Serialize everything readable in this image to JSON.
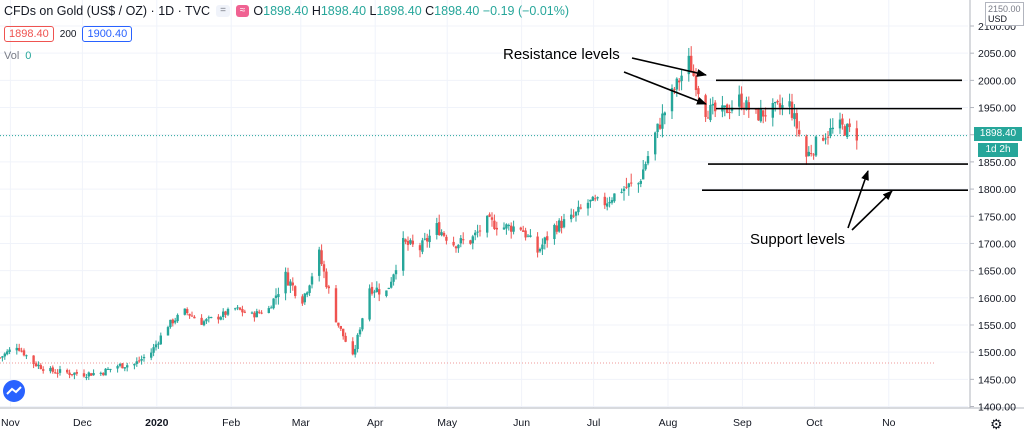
{
  "header": {
    "symbol": "CFDs on Gold (US$ / OZ) · 1D · TVC",
    "eq_icon": "=",
    "wave_icon": "≈",
    "open_label": "O",
    "open": "1898.40",
    "high_label": "H",
    "high": "1898.40",
    "low_label": "L",
    "low": "1898.40",
    "close_label": "C",
    "close": "1898.40",
    "change": "−0.19 (−0.01%)"
  },
  "quote": {
    "bid": "1898.40",
    "spread": "200",
    "ask": "1900.40"
  },
  "volume": {
    "label": "Vol",
    "value": "0"
  },
  "price_axis": {
    "currency": "USD",
    "top_cut": "2150.00"
  },
  "current_price": {
    "value": "1898.40",
    "countdown": "1d 2h"
  },
  "annotations": {
    "resistance": "Resistance levels",
    "support": "Support levels"
  },
  "colors": {
    "up": "#26a69a",
    "down": "#ef5350",
    "level_line": "#000000",
    "accent": "#2962ff"
  },
  "icons": {
    "logo": "tradingview-logo-icon",
    "settings": "gear-icon"
  },
  "chart_data": {
    "type": "candlestick",
    "title": "CFDs on Gold (US$ / OZ) · 1D · TVC",
    "y_ticks": [
      "2100.00",
      "2050.00",
      "2000.00",
      "1950.00",
      "1900.00",
      "1850.00",
      "1800.00",
      "1750.00",
      "1700.00",
      "1650.00",
      "1600.00",
      "1550.00",
      "1500.00",
      "1450.00",
      "1400.00"
    ],
    "x_ticks": [
      "Nov",
      "Dec",
      "2020",
      "Feb",
      "Mar",
      "Apr",
      "May",
      "Jun",
      "Jul",
      "Aug",
      "Sep",
      "Oct",
      "No"
    ],
    "ylim": [
      1380,
      2150
    ],
    "start_date": "2019-10-21",
    "reference_line": 1480,
    "resistance_levels": [
      2000,
      1948
    ],
    "support_levels": [
      1846,
      1798
    ],
    "series": [
      {
        "date": "2019-10-21",
        "price": 1490
      },
      {
        "date": "2019-10-28",
        "price": 1512
      },
      {
        "date": "2019-11-04",
        "price": 1480
      },
      {
        "date": "2019-11-11",
        "price": 1465
      },
      {
        "date": "2019-11-18",
        "price": 1462
      },
      {
        "date": "2019-11-25",
        "price": 1460
      },
      {
        "date": "2019-12-02",
        "price": 1462
      },
      {
        "date": "2019-12-09",
        "price": 1475
      },
      {
        "date": "2019-12-16",
        "price": 1478
      },
      {
        "date": "2019-12-23",
        "price": 1500
      },
      {
        "date": "2019-12-30",
        "price": 1550
      },
      {
        "date": "2020-01-06",
        "price": 1575
      },
      {
        "date": "2020-01-13",
        "price": 1555
      },
      {
        "date": "2020-01-20",
        "price": 1565
      },
      {
        "date": "2020-01-27",
        "price": 1580
      },
      {
        "date": "2020-02-03",
        "price": 1568
      },
      {
        "date": "2020-02-10",
        "price": 1580
      },
      {
        "date": "2020-02-17",
        "price": 1640
      },
      {
        "date": "2020-02-24",
        "price": 1595
      },
      {
        "date": "2020-03-02",
        "price": 1680
      },
      {
        "date": "2020-03-09",
        "price": 1560
      },
      {
        "date": "2020-03-16",
        "price": 1490
      },
      {
        "date": "2020-03-23",
        "price": 1620
      },
      {
        "date": "2020-03-30",
        "price": 1610
      },
      {
        "date": "2020-04-06",
        "price": 1700
      },
      {
        "date": "2020-04-13",
        "price": 1690
      },
      {
        "date": "2020-04-20",
        "price": 1730
      },
      {
        "date": "2020-04-27",
        "price": 1700
      },
      {
        "date": "2020-05-04",
        "price": 1705
      },
      {
        "date": "2020-05-11",
        "price": 1740
      },
      {
        "date": "2020-05-18",
        "price": 1730
      },
      {
        "date": "2020-05-25",
        "price": 1730
      },
      {
        "date": "2020-06-01",
        "price": 1685
      },
      {
        "date": "2020-06-08",
        "price": 1730
      },
      {
        "date": "2020-06-15",
        "price": 1745
      },
      {
        "date": "2020-06-22",
        "price": 1775
      },
      {
        "date": "2020-06-29",
        "price": 1775
      },
      {
        "date": "2020-07-06",
        "price": 1800
      },
      {
        "date": "2020-07-13",
        "price": 1810
      },
      {
        "date": "2020-07-20",
        "price": 1900
      },
      {
        "date": "2020-07-27",
        "price": 1975
      },
      {
        "date": "2020-08-03",
        "price": 2035
      },
      {
        "date": "2020-08-10",
        "price": 1945
      },
      {
        "date": "2020-08-17",
        "price": 1940
      },
      {
        "date": "2020-08-24",
        "price": 1965
      },
      {
        "date": "2020-08-31",
        "price": 1935
      },
      {
        "date": "2020-09-07",
        "price": 1945
      },
      {
        "date": "2020-09-14",
        "price": 1955
      },
      {
        "date": "2020-09-21",
        "price": 1860
      },
      {
        "date": "2020-09-28",
        "price": 1900
      },
      {
        "date": "2020-10-05",
        "price": 1915
      },
      {
        "date": "2020-10-12",
        "price": 1900
      }
    ]
  }
}
